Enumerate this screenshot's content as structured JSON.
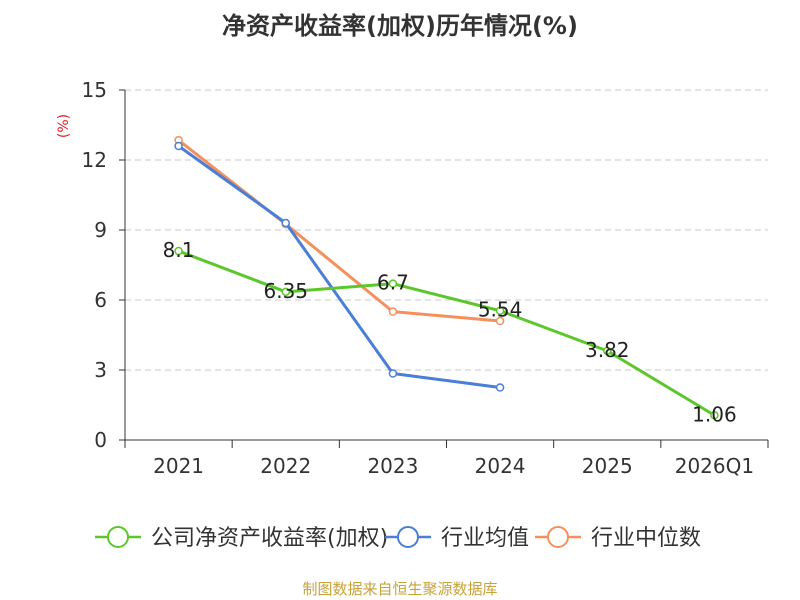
{
  "chart_data": {
    "type": "line",
    "title": "净资产收益率(加权)历年情况(%)",
    "ylabel": "(%)",
    "xlabel": "",
    "ylim": [
      0,
      15
    ],
    "yticks": [
      0,
      3,
      6,
      9,
      12,
      15
    ],
    "grid": true,
    "legend_position": "bottom",
    "categories": [
      "2021",
      "2022",
      "2023",
      "2024",
      "2025",
      "2026Q1"
    ],
    "series": [
      {
        "name": "公司净资产收益率(加权)",
        "color": "#5cc72b",
        "values": [
          8.1,
          6.35,
          6.7,
          5.54,
          3.82,
          1.06
        ],
        "labels": [
          "8.1",
          "6.35",
          "6.7",
          "5.54",
          "3.82",
          "1.06"
        ]
      },
      {
        "name": "行业均值",
        "color": "#4a7fd6",
        "values": [
          12.6,
          9.3,
          2.85,
          2.25,
          null,
          null
        ]
      },
      {
        "name": "行业中位数",
        "color": "#f5905c",
        "values": [
          12.85,
          9.25,
          5.5,
          5.1,
          null,
          null
        ]
      }
    ],
    "source": "制图数据来自恒生聚源数据库"
  }
}
